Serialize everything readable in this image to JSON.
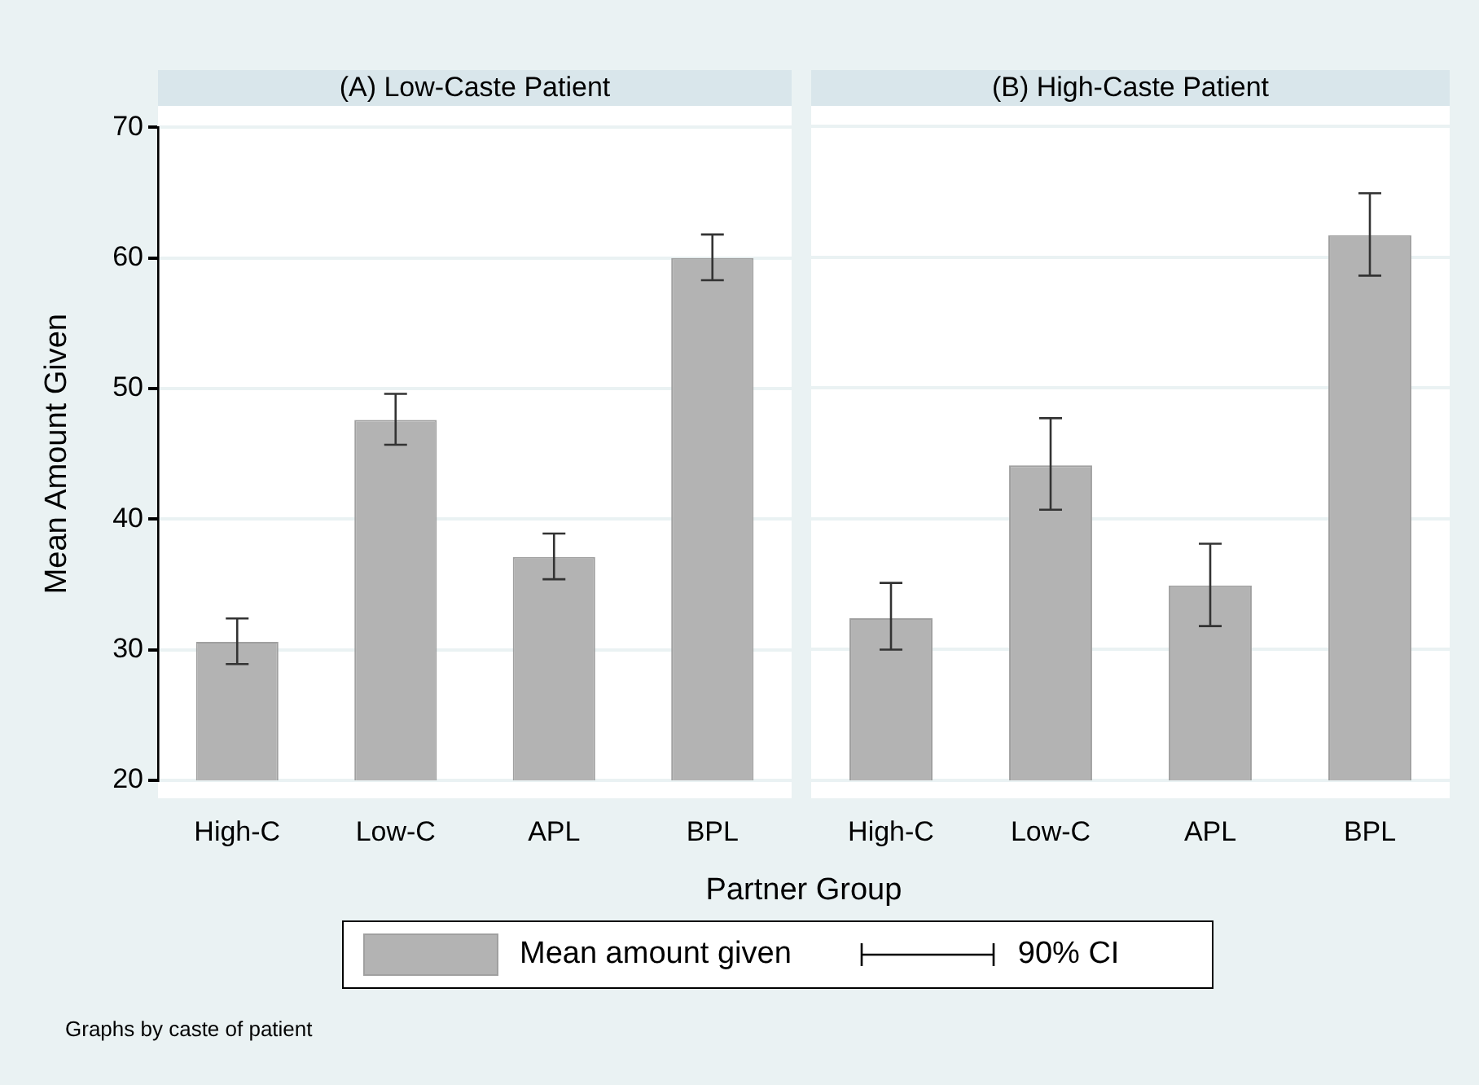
{
  "chart_data": [
    {
      "type": "bar",
      "title": "(A) Low-Caste Patient",
      "ylabel": "Mean Amount Given",
      "xlabel": "Partner Group",
      "categories": [
        "High-C",
        "Low-C",
        "APL",
        "BPL"
      ],
      "series": [
        {
          "name": "Mean amount given",
          "color": "#b3b3b3",
          "values": [
            30.6,
            47.6,
            37.1,
            60.0
          ],
          "errors": [
            [
              28.9,
              32.4
            ],
            [
              45.7,
              49.6
            ],
            [
              35.4,
              38.9
            ],
            [
              58.3,
              61.8
            ]
          ]
        }
      ],
      "ylim": [
        20,
        70
      ],
      "yticks": [
        20,
        30,
        40,
        50,
        60,
        70
      ],
      "grid": "y",
      "legend": "bottom",
      "annotations": [
        "90% CI",
        "Graphs by caste of patient"
      ]
    },
    {
      "type": "bar",
      "title": "(B) High-Caste Patient",
      "categories": [
        "High-C",
        "Low-C",
        "APL",
        "BPL"
      ],
      "series": [
        {
          "color": "#b3b3b3",
          "values": [
            32.4,
            44.1,
            34.9,
            61.7
          ],
          "errors": [
            [
              30.0,
              35.1
            ],
            [
              40.7,
              47.7
            ],
            [
              31.8,
              38.1
            ],
            [
              58.6,
              64.9
            ]
          ]
        }
      ],
      "ylim": [
        20,
        70
      ],
      "yticks": [
        20,
        30,
        40,
        50,
        60,
        70
      ],
      "grid": "y",
      "tick_labels": "x"
    }
  ]
}
